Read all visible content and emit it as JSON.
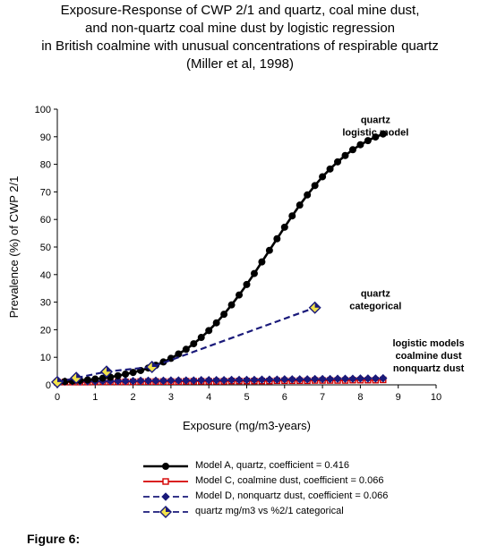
{
  "title_lines": [
    "Exposure-Response of CWP 2/1 and quartz, coal mine dust,",
    "and non-quartz coal mine dust by logistic regression",
    "in British coalmine with unusual concentrations of respirable quartz",
    "(Miller et al, 1998)"
  ],
  "figure_label": "Figure 6:",
  "chart_data": {
    "type": "line",
    "xlabel": "Exposure (mg/m3-years)",
    "ylabel": "Prevalence (%) of CWP 2/1",
    "xlim": [
      0,
      10
    ],
    "ylim": [
      0,
      100
    ],
    "x_ticks": [
      "0",
      "1",
      "2",
      "3",
      "4",
      "5",
      "6",
      "7",
      "8",
      "9",
      "10"
    ],
    "y_ticks": [
      "0",
      "10",
      "20",
      "30",
      "40",
      "50",
      "60",
      "70",
      "80",
      "90",
      "100"
    ],
    "grid": false,
    "legend_position": "bottom",
    "annotations": [
      {
        "lines": [
          "quartz",
          "logistic model"
        ],
        "x": 8.4,
        "y": 95
      },
      {
        "lines": [
          "quartz",
          "categorical"
        ],
        "x": 8.4,
        "y": 32
      },
      {
        "lines": [
          "logistic models",
          "coalmine dust",
          "nonquartz dust"
        ],
        "x": 9.8,
        "y": 14
      }
    ],
    "series": [
      {
        "name": "Model A, quartz, coefficient = 0.416",
        "color": "#000000",
        "marker": "circle",
        "dash": "solid",
        "x": [
          0,
          0.2,
          0.4,
          0.6,
          0.8,
          1.0,
          1.2,
          1.4,
          1.6,
          1.8,
          2.0,
          2.2,
          2.4,
          2.6,
          2.8,
          3.0,
          3.2,
          3.4,
          3.6,
          3.8,
          4.0,
          4.2,
          4.4,
          4.6,
          4.8,
          5.0,
          5.2,
          5.4,
          5.6,
          5.8,
          6.0,
          6.2,
          6.4,
          6.6,
          6.8,
          7.0,
          7.2,
          7.4,
          7.6,
          7.8,
          8.0,
          8.2,
          8.4,
          8.6
        ],
        "y": [
          1.0,
          1.2,
          1.4,
          1.6,
          1.8,
          2.1,
          2.4,
          2.8,
          3.3,
          3.9,
          4.5,
          5.2,
          6.1,
          7.1,
          8.3,
          9.6,
          11.2,
          12.9,
          14.9,
          17.2,
          19.7,
          22.5,
          25.6,
          29.0,
          32.6,
          36.4,
          40.4,
          44.6,
          48.8,
          53.0,
          57.2,
          61.3,
          65.2,
          68.9,
          72.3,
          75.5,
          78.3,
          80.9,
          83.2,
          85.3,
          87.1,
          88.6,
          89.9,
          91.0
        ]
      },
      {
        "name": "Model C, coalmine dust, coefficient = 0.066",
        "color": "#d40000",
        "marker": "square",
        "dash": "solid",
        "x": [
          0,
          0.2,
          0.4,
          0.6,
          0.8,
          1.0,
          1.2,
          1.4,
          1.6,
          1.8,
          2.0,
          2.2,
          2.4,
          2.6,
          2.8,
          3.0,
          3.2,
          3.4,
          3.6,
          3.8,
          4.0,
          4.2,
          4.4,
          4.6,
          4.8,
          5.0,
          5.2,
          5.4,
          5.6,
          5.8,
          6.0,
          6.2,
          6.4,
          6.6,
          6.8,
          7.0,
          7.2,
          7.4,
          7.6,
          7.8,
          8.0,
          8.2,
          8.4,
          8.6
        ],
        "y": [
          1.0,
          1.0,
          1.0,
          1.0,
          1.0,
          1.1,
          1.1,
          1.1,
          1.1,
          1.1,
          1.1,
          1.2,
          1.2,
          1.2,
          1.2,
          1.2,
          1.2,
          1.3,
          1.3,
          1.3,
          1.3,
          1.3,
          1.3,
          1.4,
          1.4,
          1.4,
          1.4,
          1.4,
          1.4,
          1.5,
          1.5,
          1.5,
          1.5,
          1.5,
          1.6,
          1.6,
          1.6,
          1.6,
          1.6,
          1.7,
          1.7,
          1.7,
          1.7,
          1.8
        ]
      },
      {
        "name": "Model D, nonquartz dust, coefficient = 0.066",
        "color": "#1a1a7a",
        "marker": "diamond",
        "dash": "dashed",
        "x": [
          0,
          0.2,
          0.4,
          0.6,
          0.8,
          1.0,
          1.2,
          1.4,
          1.6,
          1.8,
          2.0,
          2.2,
          2.4,
          2.6,
          2.8,
          3.0,
          3.2,
          3.4,
          3.6,
          3.8,
          4.0,
          4.2,
          4.4,
          4.6,
          4.8,
          5.0,
          5.2,
          5.4,
          5.6,
          5.8,
          6.0,
          6.2,
          6.4,
          6.6,
          6.8,
          7.0,
          7.2,
          7.4,
          7.6,
          7.8,
          8.0,
          8.2,
          8.4,
          8.6
        ],
        "y": [
          1.2,
          1.2,
          1.3,
          1.3,
          1.3,
          1.3,
          1.4,
          1.4,
          1.4,
          1.4,
          1.4,
          1.5,
          1.5,
          1.5,
          1.5,
          1.6,
          1.6,
          1.6,
          1.6,
          1.7,
          1.7,
          1.7,
          1.7,
          1.8,
          1.8,
          1.8,
          1.8,
          1.9,
          1.9,
          1.9,
          2.0,
          2.0,
          2.0,
          2.0,
          2.1,
          2.1,
          2.1,
          2.2,
          2.2,
          2.2,
          2.3,
          2.3,
          2.3,
          2.4
        ]
      },
      {
        "name": "quartz mg/m3 vs %2/1 categorical",
        "color": "#1a1a7a",
        "marker": "diamond-yellow",
        "dash": "dashed",
        "x": [
          0,
          0.5,
          1.3,
          2.5,
          6.8
        ],
        "y": [
          1.0,
          2.5,
          4.8,
          6.5,
          28.0
        ]
      }
    ]
  }
}
